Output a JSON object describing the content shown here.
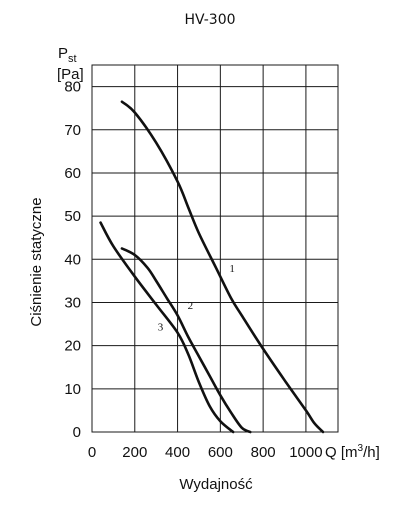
{
  "chart_data": {
    "type": "line",
    "title": "HV-300",
    "xlabel": "Wydajność",
    "x_unit_label": "Q [m³/h]",
    "x_unit_base": "Q [m",
    "x_unit_sup": "3",
    "x_unit_end": "/h]",
    "ylabel": "Ciśnienie statyczne",
    "y_unit_symbol": "P",
    "y_unit_sub": "st",
    "y_unit_bracket": "[Pa]",
    "xlim": [
      0,
      1150
    ],
    "ylim": [
      0,
      85
    ],
    "x_ticks": [
      0,
      200,
      400,
      600,
      800,
      1000
    ],
    "y_ticks": [
      0,
      10,
      20,
      30,
      40,
      50,
      60,
      70,
      80
    ],
    "grid": true,
    "legend": "none",
    "series": [
      {
        "name": "1",
        "x": [
          140,
          200,
          300,
          400,
          450,
          500,
          580,
          650,
          700,
          790,
          900,
          1000,
          1040,
          1080
        ],
        "y": [
          76.5,
          74,
          67,
          58,
          52,
          46,
          38,
          31,
          27,
          20,
          12,
          5,
          2,
          0
        ]
      },
      {
        "name": "2",
        "x": [
          140,
          200,
          260,
          300,
          350,
          400,
          450,
          500,
          550,
          600,
          650,
          700,
          740
        ],
        "y": [
          42.5,
          41,
          38,
          35,
          31,
          27,
          22,
          17.5,
          13,
          8.5,
          4.5,
          1,
          0
        ]
      },
      {
        "name": "3",
        "x": [
          40,
          100,
          200,
          300,
          400,
          450,
          500,
          550,
          600,
          660
        ],
        "y": [
          48.5,
          43,
          36,
          29.5,
          23,
          18,
          11.5,
          6,
          2.5,
          0
        ]
      }
    ],
    "curve_labels": [
      {
        "text": "1",
        "x": 655,
        "y": 37
      },
      {
        "text": "2",
        "x": 460,
        "y": 28.5
      },
      {
        "text": "3",
        "x": 320,
        "y": 23.5
      }
    ]
  }
}
